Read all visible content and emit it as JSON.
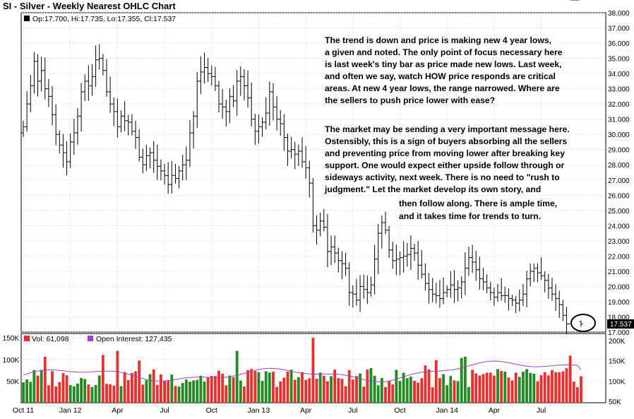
{
  "title": "SI - Silver - Weekly Nearest OHLC Chart",
  "price_panel": {
    "legend_text": "Op:17.700, Hi:17.735, Lo:17.355, Cl:17.537",
    "legend_color": "#000000",
    "last_price_label": "17.537",
    "last_price_bg": "#000000",
    "y_axis_ticks": [
      "17.000",
      "18.000",
      "19.000",
      "20.000",
      "21.000",
      "22.000",
      "23.000",
      "24.000",
      "25.000",
      "26.000",
      "27.000",
      "28.000",
      "29.000",
      "30.000",
      "31.000",
      "32.000",
      "33.000",
      "34.000",
      "35.000",
      "36.000",
      "37.000",
      "38.000"
    ],
    "annotation_paragraph_1": [
      "The trend is down and price is making new 4 year lows,",
      "a given and noted.  The only point of focus necessary here",
      "is last week's tiny bar as price made new lows.  Last week,",
      "and often we say, watch HOW price responds are critical",
      "areas.  At new 4 year lows, the range narrowed.  Where are",
      "the sellers to push price lower with ease?"
    ],
    "annotation_paragraph_2": [
      "The market may be sending a very important message here.",
      "Ostensibly, this is a sign of buyers absorbing all the sellers",
      "and preventing price from moving lower after breaking key",
      "support.  One would expect either upside follow through or",
      "sideways activity, next week.  There is no need to \"rush to",
      "judgment.\"  Let the market develop its own story, and",
      "then follow along.  There is ample time,",
      "and it takes time for trends to turn."
    ],
    "highlight_circle": "last-bar"
  },
  "volume_panel": {
    "legend_volume": "Vol: 61,098",
    "legend_oi": "Open Interest: 127,435",
    "left_ticks": [
      "50K",
      "100K",
      "150K"
    ],
    "right_ticks": [
      "50K",
      "100K",
      "150K",
      "200K"
    ],
    "colors": {
      "up": "#228b22",
      "down": "#e8302f",
      "oi": "#a040d0",
      "other": "#1a1a8c"
    }
  },
  "x_axis_labels": [
    "Oct 11",
    "Jan 12",
    "Apr",
    "Jul",
    "Oct",
    "Jan 13",
    "Apr",
    "Jul",
    "Oct",
    "Jan 14",
    "Apr",
    "Jul"
  ],
  "chart_data": {
    "type": "ohlc",
    "title": "SI - Silver - Weekly Nearest OHLC Chart",
    "ylim": [
      17,
      38
    ],
    "volume_ylim": [
      0,
      160000
    ],
    "oi_ylim": [
      50000,
      200000
    ],
    "x": [
      "2011-10-03",
      "2011-10-10",
      "2011-10-17",
      "2011-10-24",
      "2011-10-31",
      "2011-11-07",
      "2011-11-14",
      "2011-11-21",
      "2011-11-28",
      "2011-12-05",
      "2011-12-12",
      "2011-12-19",
      "2011-12-26",
      "2012-01-02",
      "2012-01-09",
      "2012-01-16",
      "2012-01-23",
      "2012-01-30",
      "2012-02-06",
      "2012-02-13",
      "2012-02-20",
      "2012-02-27",
      "2012-03-05",
      "2012-03-12",
      "2012-03-19",
      "2012-03-26",
      "2012-04-02",
      "2012-04-09",
      "2012-04-16",
      "2012-04-23",
      "2012-04-30",
      "2012-05-07",
      "2012-05-14",
      "2012-05-21",
      "2012-05-28",
      "2012-06-04",
      "2012-06-11",
      "2012-06-18",
      "2012-06-25",
      "2012-07-02",
      "2012-07-09",
      "2012-07-16",
      "2012-07-23",
      "2012-07-30",
      "2012-08-06",
      "2012-08-13",
      "2012-08-20",
      "2012-08-27",
      "2012-09-03",
      "2012-09-10",
      "2012-09-17",
      "2012-09-24",
      "2012-10-01",
      "2012-10-08",
      "2012-10-15",
      "2012-10-22",
      "2012-10-29",
      "2012-11-05",
      "2012-11-12",
      "2012-11-19",
      "2012-11-26",
      "2012-12-03",
      "2012-12-10",
      "2012-12-17",
      "2012-12-24",
      "2012-12-31",
      "2013-01-07",
      "2013-01-14",
      "2013-01-21",
      "2013-01-28",
      "2013-02-04",
      "2013-02-11",
      "2013-02-18",
      "2013-02-25",
      "2013-03-04",
      "2013-03-11",
      "2013-03-18",
      "2013-03-25",
      "2013-04-01",
      "2013-04-08",
      "2013-04-15",
      "2013-04-22",
      "2013-04-29",
      "2013-05-06",
      "2013-05-13",
      "2013-05-20",
      "2013-05-27",
      "2013-06-03",
      "2013-06-10",
      "2013-06-17",
      "2013-06-24",
      "2013-07-01",
      "2013-07-08",
      "2013-07-15",
      "2013-07-22",
      "2013-07-29",
      "2013-08-05",
      "2013-08-12",
      "2013-08-19",
      "2013-08-26",
      "2013-09-02",
      "2013-09-09",
      "2013-09-16",
      "2013-09-23",
      "2013-09-30",
      "2013-10-07",
      "2013-10-14",
      "2013-10-21",
      "2013-10-28",
      "2013-11-04",
      "2013-11-11",
      "2013-11-18",
      "2013-11-25",
      "2013-12-02",
      "2013-12-09",
      "2013-12-16",
      "2013-12-23",
      "2013-12-30",
      "2014-01-06",
      "2014-01-13",
      "2014-01-20",
      "2014-01-27",
      "2014-02-03",
      "2014-02-10",
      "2014-02-17",
      "2014-02-24",
      "2014-03-03",
      "2014-03-10",
      "2014-03-17",
      "2014-03-24",
      "2014-03-31",
      "2014-04-07",
      "2014-04-14",
      "2014-04-21",
      "2014-04-28",
      "2014-05-05",
      "2014-05-12",
      "2014-05-19",
      "2014-05-26",
      "2014-06-02",
      "2014-06-09",
      "2014-06-16",
      "2014-06-23",
      "2014-06-30",
      "2014-07-07",
      "2014-07-14",
      "2014-07-21",
      "2014-07-28",
      "2014-08-04",
      "2014-08-11",
      "2014-08-18",
      "2014-08-25",
      "2014-09-01",
      "2014-09-08",
      "2014-09-15"
    ],
    "close_path": [
      30.5,
      32.0,
      33.2,
      34.8,
      33.5,
      34.2,
      33.0,
      32.5,
      31.3,
      30.0,
      29.3,
      28.8,
      28.2,
      29.5,
      30.1,
      31.2,
      32.8,
      33.5,
      33.2,
      33.8,
      34.9,
      35.0,
      34.2,
      32.8,
      32.0,
      31.5,
      30.5,
      31.2,
      30.9,
      30.8,
      30.2,
      29.8,
      28.5,
      28.0,
      28.6,
      28.8,
      28.3,
      27.9,
      27.6,
      27.3,
      26.7,
      27.3,
      27.1,
      27.6,
      28.0,
      28.3,
      30.1,
      31.2,
      33.5,
      34.1,
      34.4,
      34.0,
      33.8,
      33.2,
      32.0,
      31.8,
      31.5,
      32.5,
      32.2,
      33.5,
      33.8,
      33.2,
      32.4,
      31.0,
      30.2,
      30.5,
      30.8,
      31.4,
      32.8,
      31.8,
      31.0,
      30.7,
      29.8,
      28.9,
      29.0,
      28.7,
      28.9,
      28.2,
      27.8,
      26.8,
      24.0,
      23.7,
      24.3,
      23.9,
      22.3,
      22.6,
      22.2,
      21.7,
      21.5,
      21.2,
      19.6,
      19.5,
      19.1,
      20.0,
      19.8,
      19.6,
      20.1,
      21.8,
      23.5,
      24.2,
      23.7,
      22.4,
      21.7,
      21.8,
      21.9,
      22.0,
      22.1,
      22.5,
      22.2,
      21.4,
      20.8,
      20.2,
      19.8,
      19.5,
      19.4,
      19.2,
      19.6,
      19.8,
      20.1,
      19.8,
      19.9,
      20.3,
      21.2,
      21.9,
      21.6,
      21.1,
      20.5,
      20.3,
      19.9,
      19.6,
      19.3,
      19.6,
      19.4,
      19.4,
      19.2,
      19.1,
      18.9,
      19.1,
      19.5,
      20.5,
      21.0,
      21.2,
      20.9,
      20.7,
      20.4,
      19.9,
      19.5,
      19.2,
      18.8,
      18.1,
      17.54
    ],
    "ohlc_last": {
      "open": 17.7,
      "high": 17.735,
      "low": 17.355,
      "close": 17.537
    },
    "volume_last": 61098,
    "open_interest_last": 127435
  }
}
